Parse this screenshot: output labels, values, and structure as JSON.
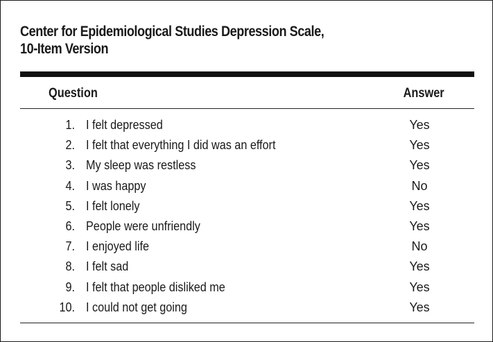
{
  "title": {
    "line1": "Center for Epidemiological Studies Depression Scale,",
    "line2": "10-Item Version"
  },
  "columns": {
    "question": "Question",
    "answer": "Answer"
  },
  "rows": [
    {
      "num": "1.",
      "question": "I felt depressed",
      "answer": "Yes"
    },
    {
      "num": "2.",
      "question": "I felt that everything I did was an effort",
      "answer": "Yes"
    },
    {
      "num": "3.",
      "question": "My sleep was restless",
      "answer": "Yes"
    },
    {
      "num": "4.",
      "question": "I was happy",
      "answer": "No"
    },
    {
      "num": "5.",
      "question": "I felt lonely",
      "answer": "Yes"
    },
    {
      "num": "6.",
      "question": "People were unfriendly",
      "answer": "Yes"
    },
    {
      "num": "7.",
      "question": "I enjoyed life",
      "answer": "No"
    },
    {
      "num": "8.",
      "question": "I felt sad",
      "answer": "Yes"
    },
    {
      "num": "9.",
      "question": "I felt that people disliked me",
      "answer": "Yes"
    },
    {
      "num": "10.",
      "question": "I could not get going",
      "answer": "Yes"
    }
  ]
}
